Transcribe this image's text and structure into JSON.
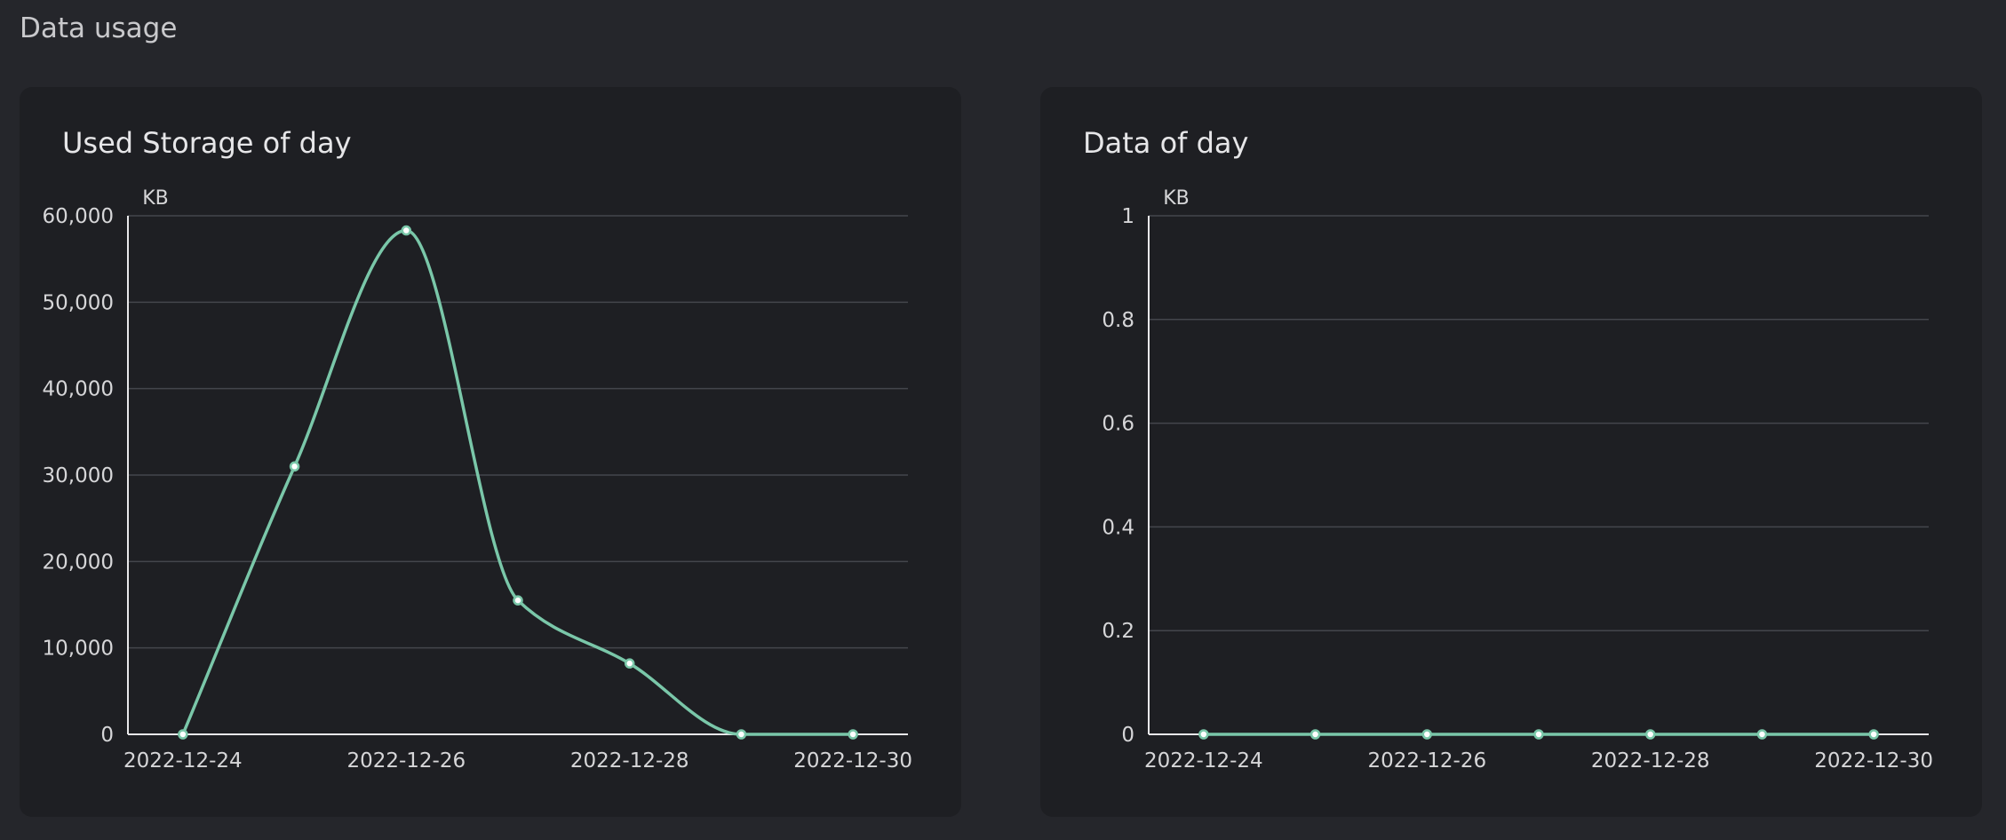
{
  "page": {
    "title": "Data usage"
  },
  "chart_data": [
    {
      "type": "line",
      "title": "Used Storage of day",
      "unit": "KB",
      "x": [
        "2022-12-24",
        "2022-12-25",
        "2022-12-26",
        "2022-12-27",
        "2022-12-28",
        "2022-12-29",
        "2022-12-30"
      ],
      "x_tick_labels": [
        "2022-12-24",
        "2022-12-26",
        "2022-12-28",
        "2022-12-30"
      ],
      "series": [
        {
          "values": [
            0,
            31000,
            58300,
            15500,
            8200,
            0,
            0
          ]
        }
      ],
      "ylim": [
        0,
        60000
      ],
      "y_ticks": [
        0,
        10000,
        20000,
        30000,
        40000,
        50000,
        60000
      ],
      "y_tick_labels": [
        "0",
        "10,000",
        "20,000",
        "30,000",
        "40,000",
        "50,000",
        "60,000"
      ],
      "smooth": true,
      "grid": true,
      "line_color": "#7ac7a9"
    },
    {
      "type": "line",
      "title": "Data of day",
      "unit": "KB",
      "x": [
        "2022-12-24",
        "2022-12-25",
        "2022-12-26",
        "2022-12-27",
        "2022-12-28",
        "2022-12-29",
        "2022-12-30"
      ],
      "x_tick_labels": [
        "2022-12-24",
        "2022-12-26",
        "2022-12-28",
        "2022-12-30"
      ],
      "series": [
        {
          "values": [
            0,
            0,
            0,
            0,
            0,
            0,
            0
          ]
        }
      ],
      "ylim": [
        0,
        1
      ],
      "y_ticks": [
        0,
        0.2,
        0.4,
        0.6,
        0.8,
        1
      ],
      "y_tick_labels": [
        "0",
        "0.2",
        "0.4",
        "0.6",
        "0.8",
        "1"
      ],
      "smooth": true,
      "grid": true,
      "line_color": "#7ac7a9"
    }
  ]
}
